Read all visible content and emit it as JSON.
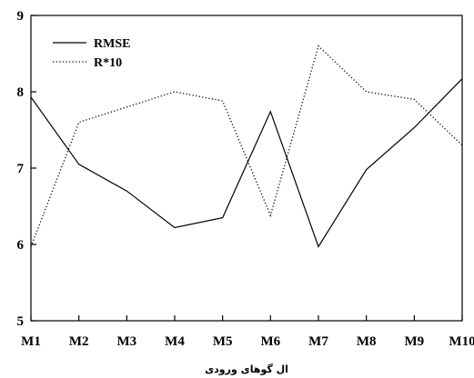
{
  "chart_data": {
    "type": "line",
    "categories": [
      "M1",
      "M2",
      "M3",
      "M4",
      "M5",
      "M6",
      "M7",
      "M8",
      "M9",
      "M10"
    ],
    "series": [
      {
        "name": "RMSE",
        "values": [
          7.93,
          7.05,
          6.7,
          6.22,
          6.35,
          7.74,
          5.97,
          6.98,
          7.53,
          8.17
        ],
        "style": "solid"
      },
      {
        "name": "R*10",
        "values": [
          5.97,
          7.6,
          7.8,
          8.0,
          7.88,
          6.38,
          8.6,
          8.0,
          7.9,
          7.3
        ],
        "style": "dotted"
      }
    ],
    "title": "",
    "xlabel": "ال گوهای ورودی",
    "ylabel": "",
    "ylim": [
      5,
      9
    ],
    "yticks": [
      5,
      6,
      7,
      8,
      9
    ],
    "grid": false,
    "legend_position": "top-left",
    "colors": {
      "line": "#000000",
      "axis": "#000000"
    }
  }
}
